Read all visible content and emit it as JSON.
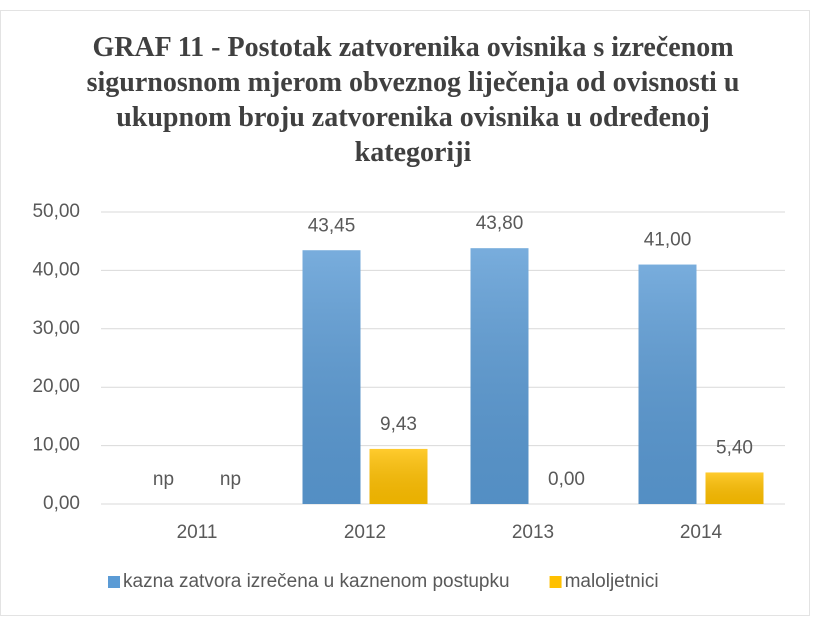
{
  "chart_data": {
    "type": "bar",
    "title": "GRAF 11 - Postotak zatvorenika ovisnika s izrečenom sigurnosnom mjerom obveznog liječenja od ovisnosti u ukupnom broju zatvorenika ovisnika u određenoj kategoriji",
    "categories": [
      "2011",
      "2012",
      "2013",
      "2014"
    ],
    "series": [
      {
        "name": "kazna zatvora izrečena u kaznenom postupku",
        "color": "#5b9bd5",
        "values": [
          null,
          43.45,
          43.8,
          41.0
        ],
        "value_labels": [
          "np",
          "43,45",
          "43,80",
          "41,00"
        ]
      },
      {
        "name": "maloljetnici",
        "color": "#ffc000",
        "values": [
          null,
          9.43,
          0.0,
          5.4
        ],
        "value_labels": [
          "np",
          "9,43",
          "0,00",
          "5,40"
        ]
      }
    ],
    "ylim": [
      0,
      50
    ],
    "yticks": [
      {
        "value": 0,
        "label": "0,00"
      },
      {
        "value": 10,
        "label": "10,00"
      },
      {
        "value": 20,
        "label": "20,00"
      },
      {
        "value": 30,
        "label": "30,00"
      },
      {
        "value": 40,
        "label": "40,00"
      },
      {
        "value": 50,
        "label": "50,00"
      }
    ],
    "grid": true,
    "legend": "bottom"
  }
}
